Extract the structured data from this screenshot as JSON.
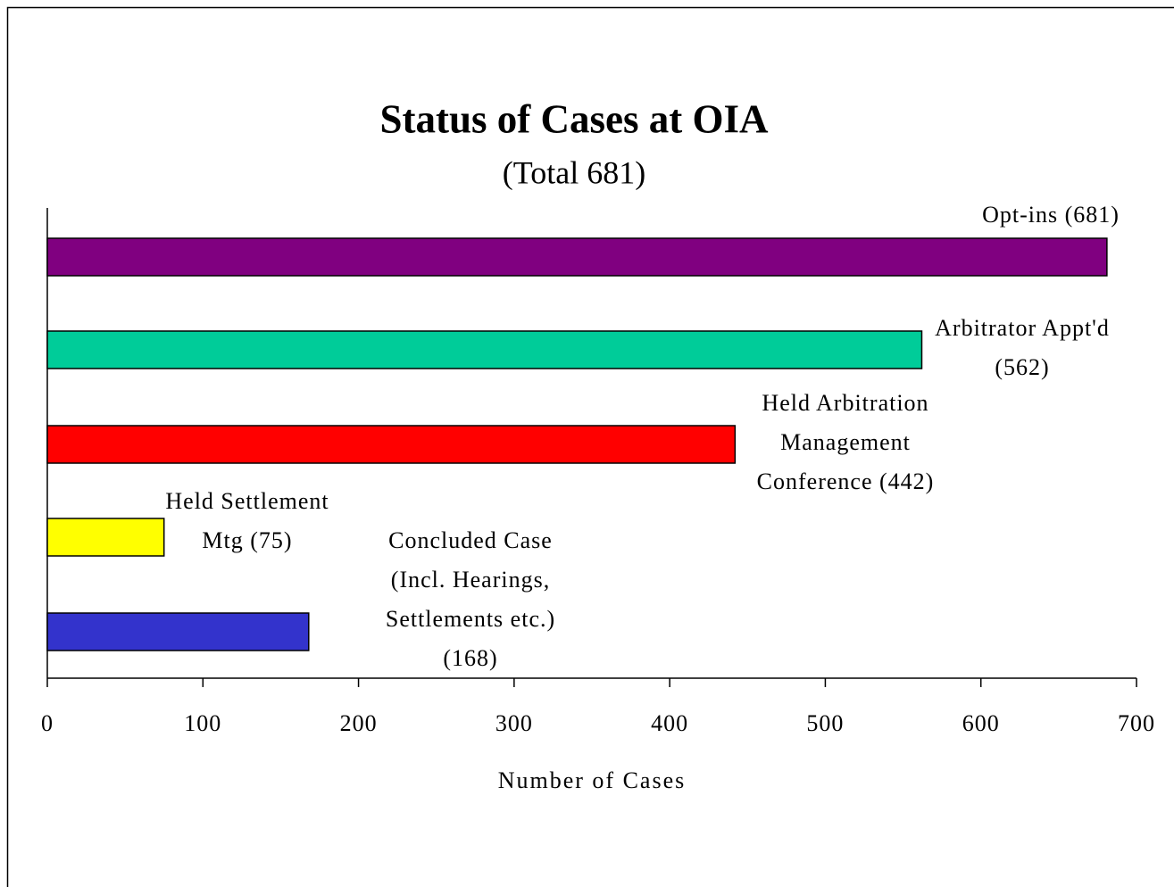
{
  "chart_data": {
    "type": "hbar",
    "title": "Status of Cases at OIA",
    "subtitle": "(Total 681)",
    "x_label": "Number of Cases",
    "values": [
      681,
      562,
      442,
      75,
      168
    ],
    "value_labels": [
      [
        "Opt-ins (681)"
      ],
      [
        "Arbitrator Appt'd",
        "(562)"
      ],
      [
        "Held Arbitration",
        "Management",
        "Conference (442)"
      ],
      [
        "Held Settlement",
        "Mtg (75)"
      ],
      [
        "Concluded Case",
        "(Incl. Hearings,",
        "Settlements etc.)",
        "(168)"
      ]
    ],
    "colors": [
      "#800080",
      "#00cc99",
      "#ff0000",
      "#ffff00",
      "#3333cc"
    ],
    "xlim": [
      0,
      700
    ],
    "xticks": [
      0,
      100,
      200,
      300,
      400,
      500,
      600,
      700
    ]
  }
}
